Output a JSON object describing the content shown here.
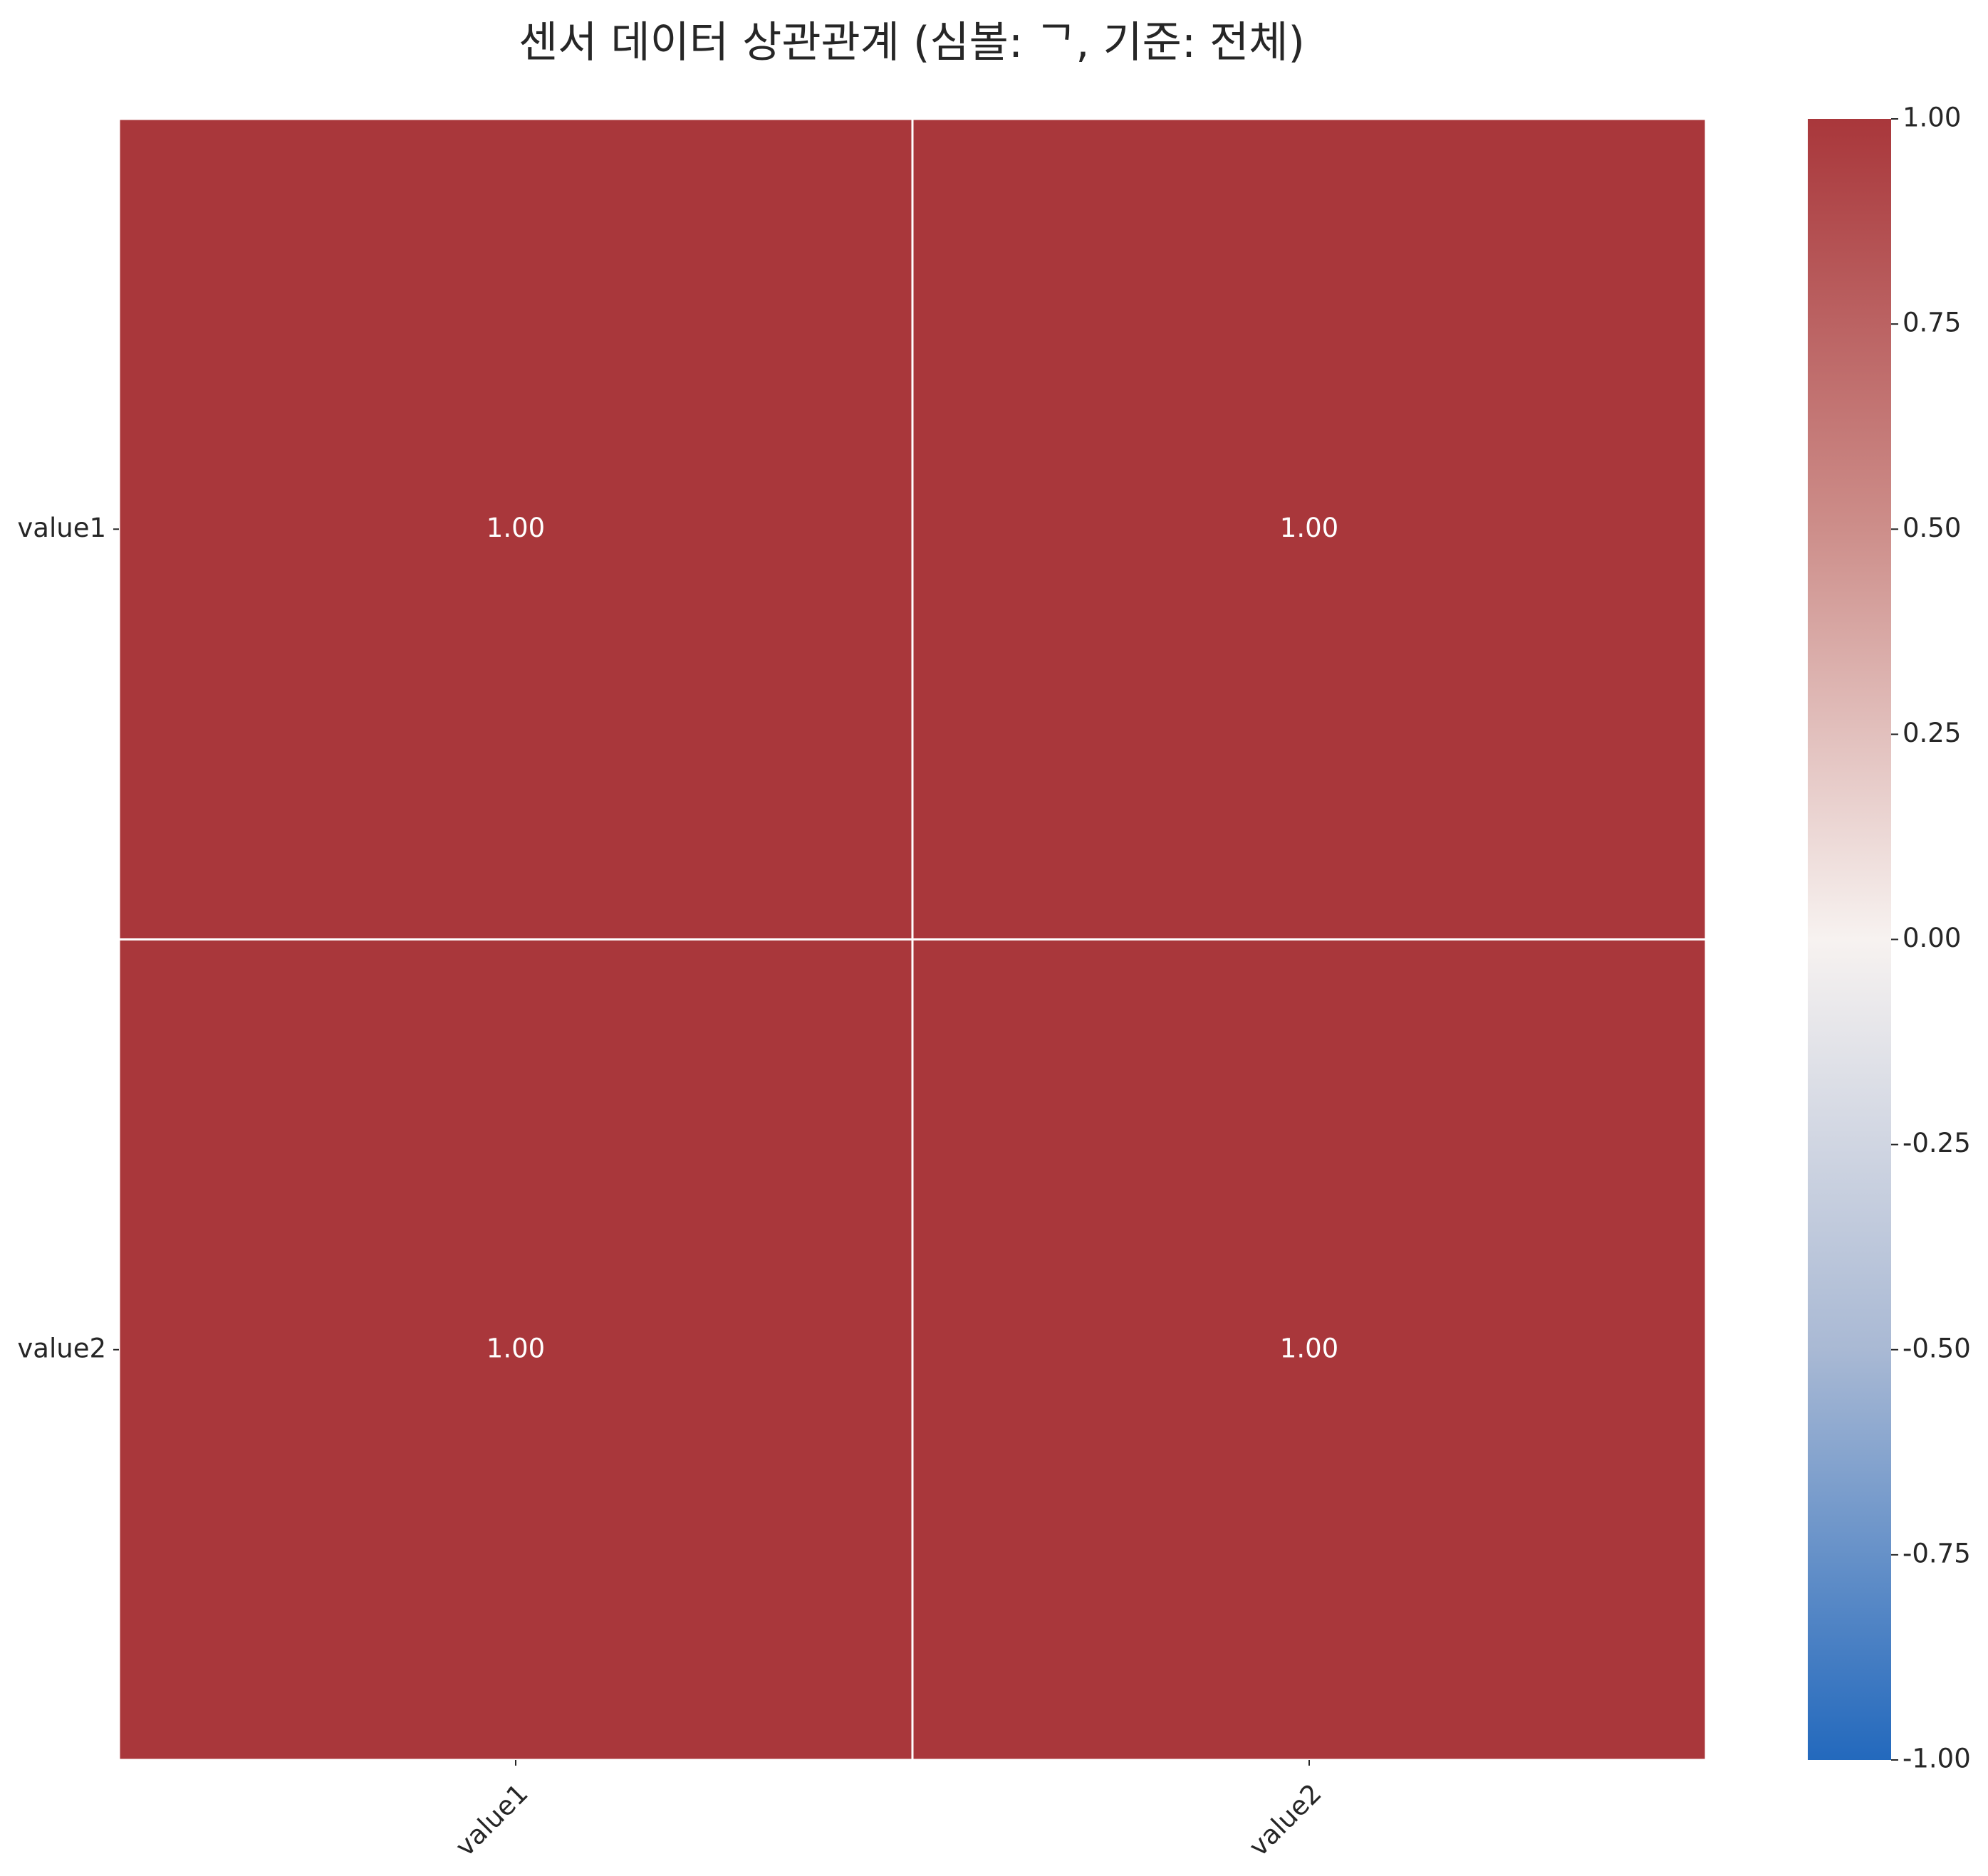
{
  "chart_data": {
    "type": "heatmap",
    "title": "센서 데이터 상관관계 (심볼: ᄀ, 기준: 전체)",
    "x_categories": [
      "value1",
      "value2"
    ],
    "y_categories": [
      "value1",
      "value2"
    ],
    "values": [
      [
        1.0,
        1.0
      ],
      [
        1.0,
        1.0
      ]
    ],
    "cell_labels": [
      [
        "1.00",
        "1.00"
      ],
      [
        "1.00",
        "1.00"
      ]
    ],
    "colorbar": {
      "min": -1.0,
      "max": 1.0,
      "ticks": [
        "1.00",
        "0.75",
        "0.50",
        "0.25",
        "0.00",
        "-0.25",
        "-0.50",
        "-0.75",
        "-1.00"
      ],
      "colormap": "vlag",
      "colors": [
        "#2369bd",
        "#a9b9d4",
        "#f7f2f0",
        "#cd8e8a",
        "#a9373b"
      ]
    }
  }
}
